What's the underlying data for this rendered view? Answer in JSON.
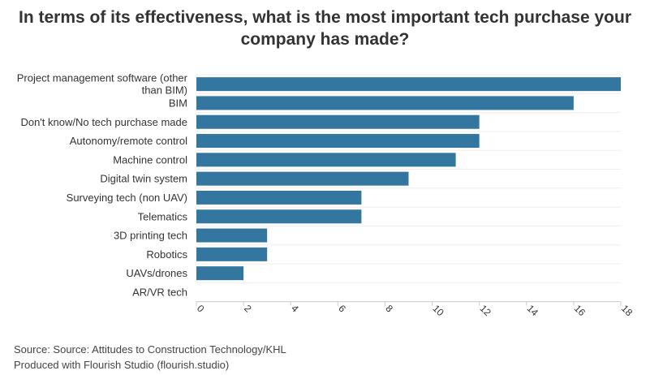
{
  "chart_data": {
    "type": "bar",
    "orientation": "horizontal",
    "title": "In terms of its effectiveness, what is the most important tech purchase your company has made?",
    "xlabel": "",
    "ylabel": "",
    "xlim": [
      0,
      18
    ],
    "ticks": [
      0,
      2,
      4,
      6,
      8,
      10,
      12,
      14,
      16,
      18
    ],
    "grid": true,
    "bar_color": "#33769f",
    "categories": [
      "Project management software (other than BIM)",
      "BIM",
      "Don't know/No tech purchase made",
      "Autonomy/remote control",
      "Machine control",
      "Digital twin system",
      "Surveying tech (non UAV)",
      "Telematics",
      "3D printing tech",
      "Robotics",
      "UAVs/drones",
      "AR/VR tech"
    ],
    "values": [
      18,
      16,
      12,
      12,
      11,
      9,
      7,
      7,
      3,
      3,
      2,
      0
    ]
  },
  "footer": {
    "source": "Source: Source: Attitudes to Construction Technology/KHL",
    "produced": "Produced with Flourish Studio (flourish.studio)"
  }
}
